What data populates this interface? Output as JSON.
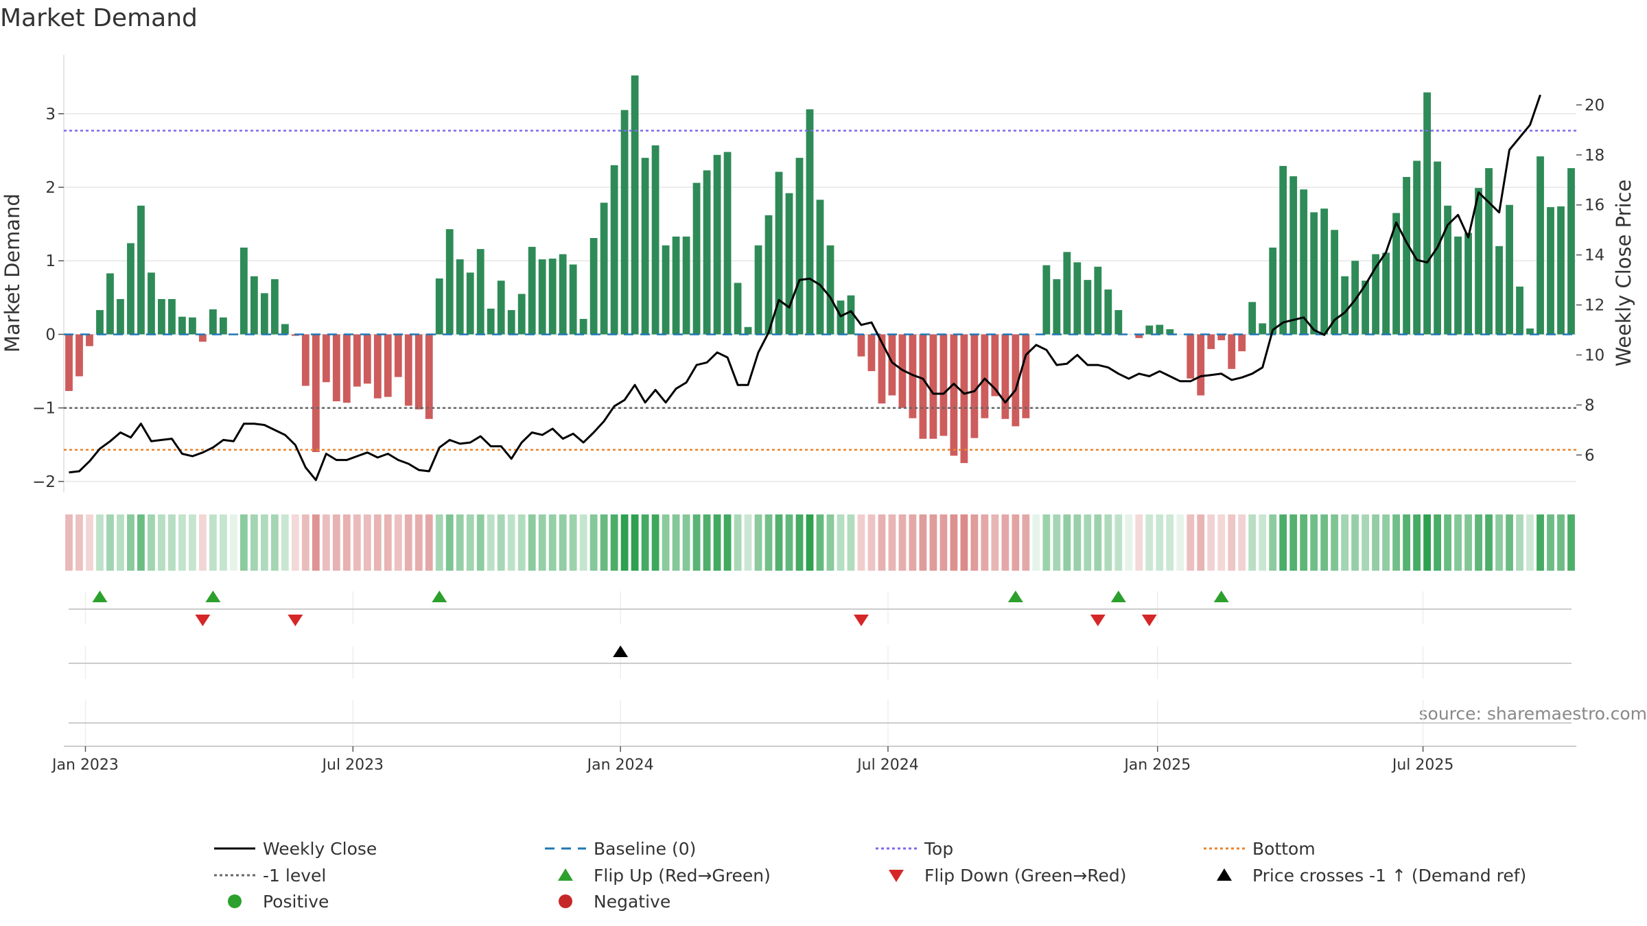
{
  "title": "Market Demand",
  "source": "source: sharemaestro.com",
  "chart_data": {
    "type": "bar",
    "title": "Market Demand",
    "ylabel": "Market Demand",
    "y2label": "Weekly Close Price",
    "ylim": [
      -2.15,
      3.8
    ],
    "y2lim": [
      4.5,
      22
    ],
    "y_ticks": [
      "−2",
      "−1",
      "0",
      "1",
      "2",
      "3"
    ],
    "y_tick_values": [
      -2,
      -1,
      0,
      1,
      2,
      3
    ],
    "y2_ticks": [
      "6",
      "8",
      "10",
      "12",
      "14",
      "16",
      "18",
      "20"
    ],
    "y2_tick_values": [
      6,
      8,
      10,
      12,
      14,
      16,
      18,
      20
    ],
    "x_ticks": [
      "Jan 2023",
      "Jul 2023",
      "Jan 2024",
      "Jul 2024",
      "Jan 2025",
      "Jul 2025"
    ],
    "x_tick_weeks": [
      1.6,
      27.6,
      53.6,
      79.6,
      105.8,
      131.6
    ],
    "reference_lines": {
      "top": 2.77,
      "bottom": -1.57,
      "minus_one": -1.0,
      "baseline": 0
    },
    "demand": [
      -0.77,
      -0.57,
      -0.16,
      0.33,
      0.83,
      0.48,
      1.24,
      1.75,
      0.84,
      0.48,
      0.48,
      0.24,
      0.23,
      -0.1,
      0.34,
      0.23,
      0,
      1.18,
      0.79,
      0.56,
      0.75,
      0.14,
      -0.02,
      -0.7,
      -1.6,
      -0.65,
      -0.91,
      -0.93,
      -0.71,
      -0.67,
      -0.87,
      -0.85,
      -0.58,
      -0.97,
      -1.02,
      -1.15,
      0.76,
      1.43,
      1.02,
      0.84,
      1.16,
      0.35,
      0.73,
      0.33,
      0.55,
      1.19,
      1.02,
      1.03,
      1.09,
      0.95,
      0.21,
      1.31,
      1.79,
      2.3,
      3.05,
      3.52,
      2.4,
      2.57,
      1.21,
      1.33,
      1.33,
      2.06,
      2.23,
      2.44,
      2.48,
      0.7,
      0.1,
      1.21,
      1.62,
      2.21,
      1.92,
      2.4,
      3.06,
      1.83,
      1.21,
      0.46,
      0.53,
      -0.3,
      -0.5,
      -0.94,
      -0.83,
      -1.0,
      -1.14,
      -1.42,
      -1.42,
      -1.38,
      -1.65,
      -1.75,
      -1.41,
      -1.14,
      -0.84,
      -1.15,
      -1.25,
      -1.14,
      0,
      0.94,
      0.75,
      1.12,
      0.98,
      0.74,
      0.92,
      0.61,
      0.33,
      0,
      -0.05,
      0.12,
      0.13,
      0.07,
      0,
      -0.6,
      -0.83,
      -0.2,
      -0.08,
      -0.47,
      -0.23,
      0.44,
      0.15,
      1.18,
      2.29,
      2.15,
      1.97,
      1.66,
      1.71,
      1.42,
      0.79,
      1.0,
      0.73,
      1.09,
      1.11,
      1.65,
      2.14,
      2.36,
      3.29,
      2.35,
      1.75,
      1.33,
      1.38,
      1.99,
      2.26,
      1.2,
      1.76,
      0.65,
      0.08,
      2.42,
      1.73,
      1.74,
      2.26
    ],
    "close": [
      5.3,
      5.35,
      5.75,
      6.25,
      6.55,
      6.9,
      6.7,
      7.25,
      6.55,
      6.6,
      6.65,
      6.05,
      5.95,
      6.1,
      6.3,
      6.6,
      6.55,
      7.25,
      7.25,
      7.2,
      7.0,
      6.8,
      6.4,
      5.5,
      5.0,
      6.05,
      5.8,
      5.8,
      5.95,
      6.1,
      5.9,
      6.05,
      5.8,
      5.65,
      5.4,
      5.35,
      6.3,
      6.6,
      6.45,
      6.5,
      6.75,
      6.35,
      6.35,
      5.85,
      6.5,
      6.9,
      6.8,
      7.05,
      6.65,
      6.85,
      6.5,
      6.9,
      7.35,
      7.95,
      8.2,
      8.8,
      8.1,
      8.6,
      8.1,
      8.65,
      8.9,
      9.6,
      9.7,
      10.1,
      9.9,
      8.8,
      8.8,
      10.1,
      10.9,
      12.2,
      11.9,
      13.0,
      13.05,
      12.8,
      12.3,
      11.55,
      11.75,
      11.2,
      11.3,
      10.5,
      9.7,
      9.4,
      9.2,
      9.05,
      8.45,
      8.45,
      8.85,
      8.45,
      8.55,
      9.05,
      8.65,
      8.1,
      8.6,
      10.0,
      10.4,
      10.2,
      9.6,
      9.65,
      10.0,
      9.6,
      9.6,
      9.5,
      9.25,
      9.05,
      9.25,
      9.15,
      9.35,
      9.15,
      8.95,
      8.95,
      9.15,
      9.2,
      9.25,
      9.0,
      9.1,
      9.25,
      9.5,
      11.0,
      11.3,
      11.4,
      11.5,
      11.0,
      10.8,
      11.4,
      11.7,
      12.2,
      12.8,
      13.5,
      14.1,
      15.3,
      14.5,
      13.8,
      13.7,
      14.3,
      15.2,
      15.6,
      14.7,
      16.5,
      16.1,
      15.7,
      18.2,
      18.7,
      19.2,
      20.4
    ],
    "flips_up_weeks": [
      3.0,
      14.0,
      36.0,
      92.0,
      102.0,
      112.0
    ],
    "flips_down_weeks": [
      13.0,
      22.0,
      77.0,
      100.0,
      105.0
    ],
    "price_cross_weeks": [
      53.6
    ],
    "legend": [
      {
        "label": "Weekly Close",
        "style": "line-solid",
        "color": "#000000"
      },
      {
        "label": "Baseline (0)",
        "style": "line-dash",
        "color": "#1f77b4"
      },
      {
        "label": "Top",
        "style": "line-dot",
        "color": "#7b68ee"
      },
      {
        "label": "Bottom",
        "style": "line-dot",
        "color": "#e8842c"
      },
      {
        "label": "-1 level",
        "style": "line-dot",
        "color": "#666666"
      },
      {
        "label": "Flip Up (Red→Green)",
        "style": "tri-up",
        "color": "#2ca02c"
      },
      {
        "label": "Flip Down (Green→Red)",
        "style": "tri-down",
        "color": "#d62728"
      },
      {
        "label": "Price crosses -1 ↑ (Demand ref)",
        "style": "tri-up",
        "color": "#000000"
      },
      {
        "label": "Positive",
        "style": "dot",
        "color": "#2ca02c"
      },
      {
        "label": "Negative",
        "style": "dot",
        "color": "#c62828"
      }
    ]
  },
  "colors": {
    "positive_bar": "#2e8b57",
    "negative_bar": "#cd5c5c",
    "close_line": "#000000",
    "grid": "#e6e6e6"
  }
}
